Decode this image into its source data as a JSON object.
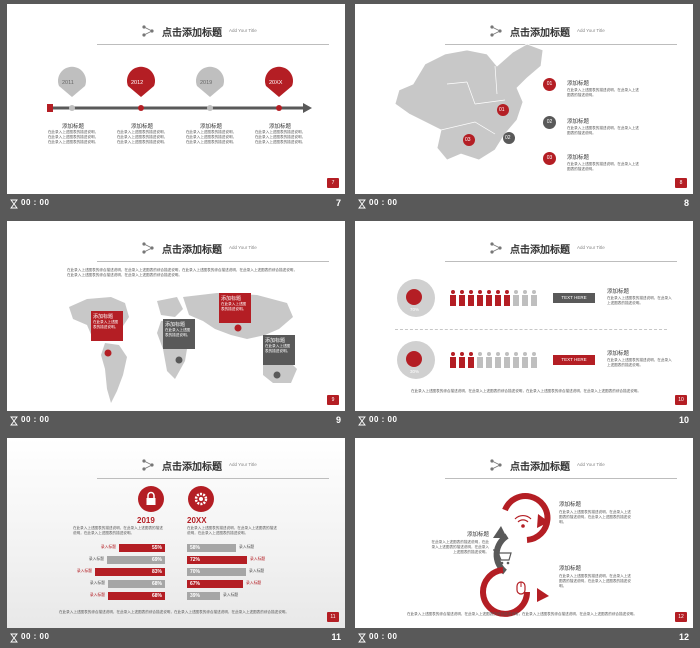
{
  "common": {
    "time": "00 : 00",
    "header_title": "点击添加标题",
    "header_subtitle": "Add Your Title",
    "add_title": "添加标题",
    "body_short": "在此录入上述图表的描述说明，在此录入上述图表的描述说明，在此录入上述图表的描述说明。",
    "body_long": "在此录入上述图表的综合描述说明，在此录入上述图表的综合描述说明，在此录入上述图表的综合描述说明，在此录入上述图表的综合描述说明。",
    "colors": {
      "accent": "#b41e24",
      "gray": "#bfbfbf",
      "dark": "#595959"
    }
  },
  "slides": [
    {
      "number": "7",
      "badge": "7",
      "timeline": [
        {
          "year": "2011",
          "title": "添加标题",
          "text": "在此录入上述图表的描述说明，在此录入上述图表的描述说明，在此录入上述图表的描述说明。"
        },
        {
          "year": "2012",
          "title": "添加标题",
          "text": "在此录入上述图表的描述说明，在此录入上述图表的描述说明，在此录入上述图表的描述说明。"
        },
        {
          "year": "2019",
          "title": "添加标题",
          "text": "在此录入上述图表的描述说明，在此录入上述图表的描述说明，在此录入上述图表的描述说明。"
        },
        {
          "year": "20XX",
          "title": "添加标题",
          "text": "在此录入上述图表的描述说明，在此录入上述图表的描述说明，在此录入上述图表的描述说明。"
        }
      ]
    },
    {
      "number": "8",
      "badge": "8",
      "map_markers": [
        "01",
        "02",
        "03"
      ],
      "items": [
        {
          "num": "01",
          "title": "添加标题",
          "text": "在此录入上述图表的描述说明，在此录入上述图表的描述说明。"
        },
        {
          "num": "02",
          "title": "添加标题",
          "text": "在此录入上述图表的描述说明，在此录入上述图表的描述说明。"
        },
        {
          "num": "03",
          "title": "添加标题",
          "text": "在此录入上述图表的描述说明，在此录入上述图表的描述说明。"
        }
      ]
    },
    {
      "number": "9",
      "badge": "9",
      "intro": "在此录入上述图表的综合描述说明，在此录入上述图表的综合描述说明，在此录入上述图表的综合描述说明，在此录入上述图表的综合描述说明，在此录入上述图表的综合描述说明，在此录入上述图表的综合描述说明。",
      "callouts": [
        {
          "title": "添加标题",
          "text": "在此录入上述图表的描述说明。"
        },
        {
          "title": "添加标题",
          "text": "在此录入上述图表的描述说明。"
        },
        {
          "title": "添加标题",
          "text": "在此录入上述图表的描述说明。"
        },
        {
          "title": "添加标题",
          "text": "在此录入上述图表的描述说明。"
        }
      ]
    },
    {
      "number": "10",
      "badge": "10",
      "rows": [
        {
          "percent": "70%",
          "filled": 7,
          "total": 10,
          "button": "TEXT HERE",
          "title": "添加标题",
          "text": "在此录入上述图表的描述说明，在此录入上述图表的描述说明。"
        },
        {
          "percent": "30%",
          "filled": 3,
          "total": 10,
          "button": "TEXT HERE",
          "title": "添加标题",
          "text": "在此录入上述图表的描述说明，在此录入上述图表的描述说明。"
        }
      ],
      "footer_text": "在此录入上述图表的综合描述说明，在此录入上述图表的综合描述说明，在此录入上述图表的综合描述说明，在此录入上述图表的综合描述说明。"
    },
    {
      "number": "11",
      "badge": "11",
      "left": {
        "year": "2019",
        "text": "在此录入上述图表的描述说明，在此录入上述图表的描述说明，在此录入上述图表的描述说明。",
        "bars": [
          {
            "label": "录入标题",
            "value": 55,
            "display": "55%"
          },
          {
            "label": "录入标题",
            "value": 69,
            "display": "69%"
          },
          {
            "label": "录入标题",
            "value": 83,
            "display": "83%"
          },
          {
            "label": "录入标题",
            "value": 68,
            "display": "68%"
          },
          {
            "label": "录入标题",
            "value": 68,
            "display": "68%"
          }
        ]
      },
      "right": {
        "year": "20XX",
        "text": "在此录入上述图表的描述说明，在此录入上述图表的描述说明，在此录入上述图表的描述说明。",
        "bars": [
          {
            "label": "录入标题",
            "value": 58,
            "display": "58%"
          },
          {
            "label": "录入标题",
            "value": 72,
            "display": "72%"
          },
          {
            "label": "录入标题",
            "value": 70,
            "display": "70%"
          },
          {
            "label": "录入标题",
            "value": 67,
            "display": "67%"
          },
          {
            "label": "录入标题",
            "value": 39,
            "display": "39%"
          }
        ]
      },
      "footer_text": "在此录入上述图表的综合描述说明，在此录入上述图表的综合描述说明，在此录入上述图表的综合描述说明，在此录入上述图表的综合描述说明。"
    },
    {
      "number": "12",
      "badge": "12",
      "items": [
        {
          "title": "添加标题",
          "text": "在此录入上述图表的描述说明，在此录入上述图表的描述说明，在此录入上述图表的描述说明。"
        },
        {
          "title": "添加标题",
          "text": "在此录入上述图表的描述说明，在此录入上述图表的描述说明，在此录入上述图表的描述说明。"
        },
        {
          "title": "添加标题",
          "text": "在此录入上述图表的描述说明，在此录入上述图表的描述说明，在此录入上述图表的描述说明。"
        }
      ],
      "icons": [
        "wifi-icon",
        "cart-icon",
        "mouse-icon"
      ],
      "footer_text": "在此录入上述图表的综合描述说明，在此录入上述图表的综合描述说明，在此录入上述图表的综合描述说明，在此录入上述图表的综合描述说明。"
    }
  ]
}
